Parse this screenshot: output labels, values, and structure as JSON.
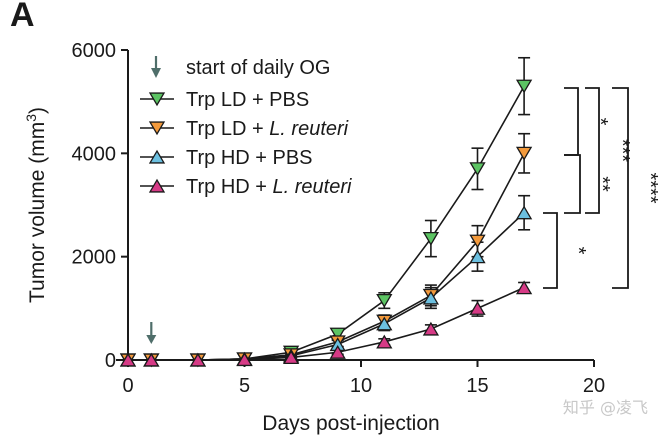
{
  "panel_label": "A",
  "watermark": "知乎 @凌飞",
  "colors": {
    "trp_ld_pbs": "#5cc463",
    "trp_ld_lreuteri": "#f39a3c",
    "trp_hd_pbs": "#6cc0e0",
    "trp_hd_lreuteri": "#d63a86",
    "arrow": "#4f6e6a",
    "axis": "#1a1a1a"
  },
  "legend": {
    "og_label": "start of daily OG",
    "og_icon": "down-arrow-icon"
  },
  "chart_data": {
    "type": "line",
    "xlabel": "Days post-injection",
    "ylabel": "Tumor volume (mm",
    "ylabel_sup": "3",
    "ylabel_close": ")",
    "xlim": [
      -0.5,
      20
    ],
    "ylim": [
      0,
      6000
    ],
    "xticks": [
      0,
      5,
      10,
      15,
      20
    ],
    "yticks": [
      0,
      2000,
      4000,
      6000
    ],
    "grid": false,
    "legend_position": "top-left",
    "og_arrow_day": 1,
    "series": [
      {
        "name": "Trp LD + PBS",
        "name_main": "Trp LD + PBS",
        "name_italic": "",
        "marker": "triangle-down",
        "color_key": "trp_ld_pbs",
        "x": [
          0,
          1,
          3,
          5,
          7,
          9,
          11,
          13,
          15,
          17
        ],
        "y": [
          0,
          0,
          0,
          20,
          150,
          500,
          1150,
          2350,
          3700,
          5300
        ],
        "err": [
          0,
          0,
          0,
          0,
          60,
          100,
          150,
          350,
          400,
          550
        ]
      },
      {
        "name": "Trp LD + L. reuteri",
        "name_main": "Trp LD + ",
        "name_italic": "L. reuteri",
        "marker": "triangle-down",
        "color_key": "trp_ld_lreuteri",
        "x": [
          0,
          1,
          3,
          5,
          7,
          9,
          11,
          13,
          15,
          17
        ],
        "y": [
          0,
          0,
          0,
          20,
          100,
          350,
          750,
          1250,
          2300,
          4000
        ],
        "err": [
          0,
          0,
          0,
          0,
          40,
          90,
          120,
          200,
          300,
          380
        ]
      },
      {
        "name": "Trp HD + PBS",
        "name_main": "Trp HD + PBS",
        "name_italic": "",
        "marker": "triangle-up",
        "color_key": "trp_hd_pbs",
        "x": [
          0,
          1,
          3,
          5,
          7,
          9,
          11,
          13,
          15,
          17
        ],
        "y": [
          0,
          0,
          0,
          20,
          80,
          300,
          700,
          1200,
          2000,
          2850
        ],
        "err": [
          0,
          0,
          0,
          0,
          40,
          80,
          130,
          200,
          280,
          330
        ]
      },
      {
        "name": "Trp HD + L. reuteri",
        "name_main": "Trp HD + ",
        "name_italic": "L. reuteri",
        "marker": "triangle-up",
        "color_key": "trp_hd_lreuteri",
        "x": [
          0,
          1,
          3,
          5,
          7,
          9,
          11,
          13,
          15,
          17
        ],
        "y": [
          0,
          0,
          0,
          10,
          50,
          150,
          350,
          600,
          1000,
          1400
        ],
        "err": [
          0,
          0,
          0,
          0,
          20,
          40,
          60,
          80,
          150,
          100
        ]
      }
    ],
    "significance": [
      {
        "from": "Trp LD + PBS",
        "to": "Trp LD + L. reuteri",
        "label": "*"
      },
      {
        "from": "Trp LD + L. reuteri",
        "to": "Trp HD + PBS",
        "label": "**"
      },
      {
        "from": "Trp HD + PBS",
        "to": "Trp HD + L. reuteri",
        "label": "*"
      },
      {
        "from": "Trp LD + PBS",
        "to": "Trp HD + PBS",
        "label": "***"
      },
      {
        "from": "Trp LD + PBS",
        "to": "Trp HD + L. reuteri",
        "label": "****"
      }
    ]
  }
}
